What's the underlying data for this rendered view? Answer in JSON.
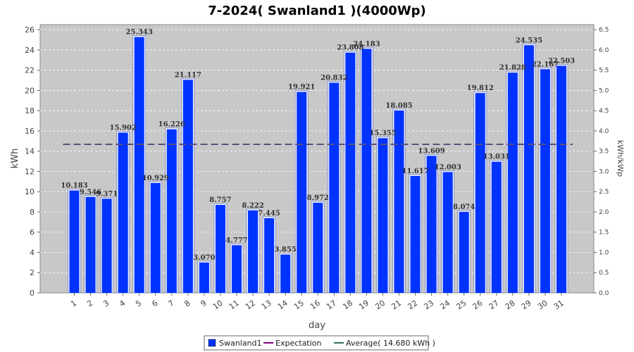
{
  "chart_data": {
    "type": "bar",
    "title": "7-2024( Swanland1 )(4000Wp)",
    "xlabel": "day",
    "ylabel": "kWh",
    "y2label": "kWh/kWp",
    "ylim": [
      0,
      26.5
    ],
    "y2lim": [
      0,
      6.625
    ],
    "yticks": [
      0,
      2,
      4,
      6,
      8,
      10,
      12,
      14,
      16,
      18,
      20,
      22,
      24,
      26
    ],
    "y2ticks": [
      "0.0",
      "0.5",
      "1.0",
      "1.5",
      "2.0",
      "2.5",
      "3.0",
      "3.5",
      "4.0",
      "4.5",
      "5.0",
      "5.5",
      "6.0",
      "6.5"
    ],
    "grid": true,
    "legend_position": "bottom",
    "categories": [
      "1",
      "2",
      "3",
      "4",
      "5",
      "6",
      "7",
      "8",
      "9",
      "10",
      "11",
      "12",
      "13",
      "14",
      "15",
      "16",
      "17",
      "18",
      "19",
      "20",
      "21",
      "22",
      "23",
      "24",
      "25",
      "26",
      "27",
      "28",
      "29",
      "30",
      "31"
    ],
    "series": [
      {
        "name": "Swanland1",
        "color": "#0033ff",
        "values": [
          10.183,
          9.546,
          9.371,
          15.902,
          25.343,
          10.929,
          16.226,
          21.117,
          3.07,
          8.757,
          4.777,
          8.222,
          7.445,
          3.855,
          19.921,
          8.972,
          20.832,
          23.808,
          24.183,
          15.355,
          18.085,
          11.617,
          13.609,
          12.003,
          8.074,
          19.812,
          13.031,
          21.828,
          24.535,
          22.167,
          22.503
        ],
        "labels": [
          "10.183",
          "9.546",
          "9.371",
          "15.902",
          "25.343",
          "10.929",
          "16.226",
          "21.117",
          "3.070",
          "8.757",
          "4.777",
          "8.222",
          "7.445",
          "3.855",
          "19.921",
          "8.972",
          "20.832",
          "23.808",
          "24.183",
          "15.355",
          "18.085",
          "11.617",
          "13.609",
          "12.003",
          "8.074",
          "19.812",
          "13.031",
          "21.828",
          "24.535",
          "22.167",
          "22.503"
        ]
      }
    ],
    "legend": [
      {
        "name": "Swanland1",
        "kind": "box",
        "color": "#0033ff"
      },
      {
        "name": "Expectation",
        "kind": "line",
        "color": "#800080"
      },
      {
        "name": "Average( 14.680 kWh )",
        "kind": "line",
        "color": "#2e6b4f"
      }
    ],
    "average": {
      "value": 14.68,
      "color": "#5a4f7a"
    }
  }
}
